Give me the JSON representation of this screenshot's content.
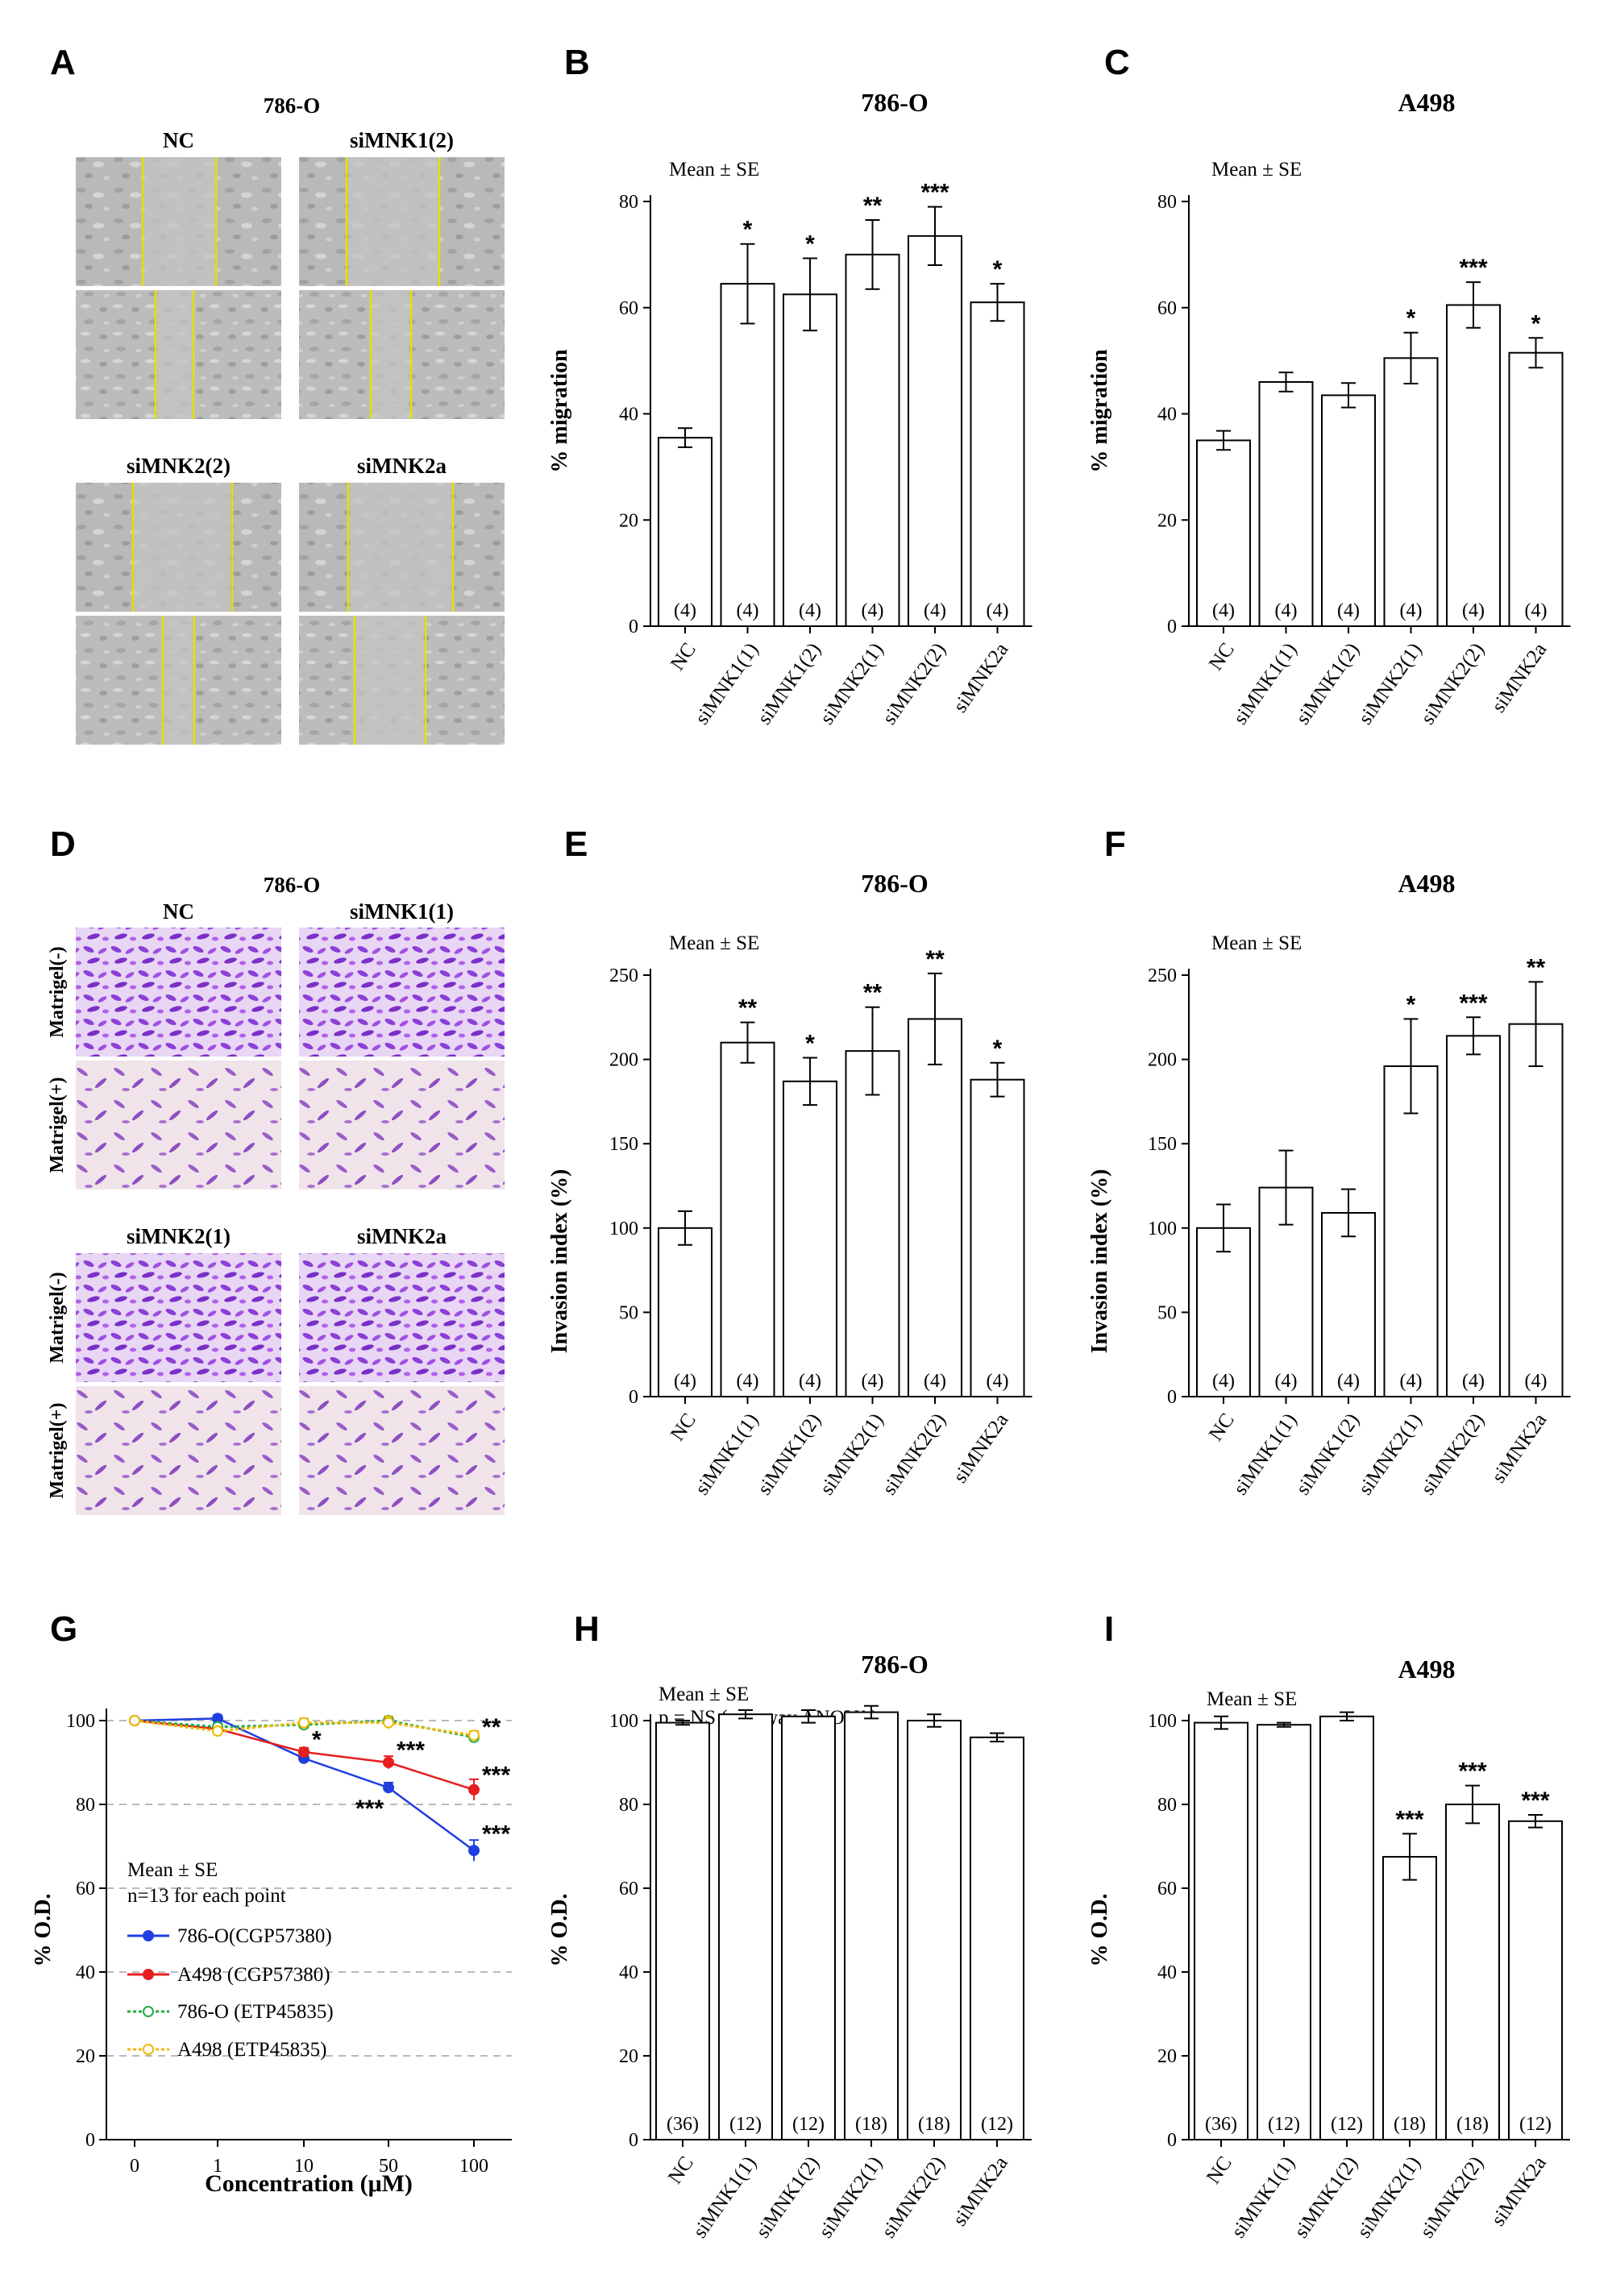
{
  "colors": {
    "blue": "#1f3fe0",
    "red": "#e61e1e",
    "green": "#22aa44",
    "orange": "#f0b800",
    "scratch_bg": "#b8b8b8",
    "scratch_line": "#e8e000",
    "stain_light": "#efe1ea",
    "stain_dark": "#8a3fd0"
  },
  "panel_A": {
    "letter": "A",
    "title": "786-O",
    "images": [
      {
        "label": "NC"
      },
      {
        "label": "siMNK1(2)"
      },
      {
        "label": "siMNK2(2)"
      },
      {
        "label": "siMNK2a"
      }
    ]
  },
  "panel_D": {
    "letter": "D",
    "title": "786-O",
    "row_labels": [
      "Matrigel(-)",
      "Matrigel(+)"
    ],
    "images": [
      {
        "label": "NC"
      },
      {
        "label": "siMNK1(1)"
      },
      {
        "label": "siMNK2(1)"
      },
      {
        "label": "siMNK2a"
      }
    ]
  },
  "chart_data": [
    {
      "panel": "B",
      "type": "bar",
      "title": "786-O",
      "note": "Mean ± SE",
      "ylabel": "% migration",
      "ylim": [
        0,
        80
      ],
      "yticks": [
        0,
        20,
        40,
        60,
        80
      ],
      "categories": [
        "NC",
        "siMNK1(1)",
        "siMNK1(2)",
        "siMNK2(1)",
        "siMNK2(2)",
        "siMNK2a"
      ],
      "values": [
        35.5,
        64.5,
        62.5,
        70,
        73.5,
        61
      ],
      "errors": [
        1.8,
        7.5,
        6.8,
        6.5,
        5.5,
        3.5
      ],
      "n": [
        "(4)",
        "(4)",
        "(4)",
        "(4)",
        "(4)",
        "(4)"
      ],
      "stars": [
        "",
        "*",
        "*",
        "**",
        "***",
        "*"
      ]
    },
    {
      "panel": "C",
      "type": "bar",
      "title": "A498",
      "note": "Mean ± SE",
      "ylabel": "% migration",
      "ylim": [
        0,
        80
      ],
      "yticks": [
        0,
        20,
        40,
        60,
        80
      ],
      "categories": [
        "NC",
        "siMNK1(1)",
        "siMNK1(2)",
        "siMNK2(1)",
        "siMNK2(2)",
        "siMNK2a"
      ],
      "values": [
        35,
        46,
        43.5,
        50.5,
        60.5,
        51.5
      ],
      "errors": [
        1.8,
        1.8,
        2.3,
        4.8,
        4.3,
        2.8
      ],
      "n": [
        "(4)",
        "(4)",
        "(4)",
        "(4)",
        "(4)",
        "(4)"
      ],
      "stars": [
        "",
        "",
        "",
        "*",
        "***",
        "*"
      ]
    },
    {
      "panel": "E",
      "type": "bar",
      "title": "786-O",
      "note": "Mean ± SE",
      "ylabel": "Invasion  index (%)",
      "ylim": [
        0,
        250
      ],
      "yticks": [
        0,
        50,
        100,
        150,
        200,
        250
      ],
      "categories": [
        "NC",
        "siMNK1(1)",
        "siMNK1(2)",
        "siMNK2(1)",
        "siMNK2(2)",
        "siMNK2a"
      ],
      "values": [
        100,
        210,
        187,
        205,
        224,
        188
      ],
      "errors": [
        10,
        12,
        14,
        26,
        27,
        10
      ],
      "n": [
        "(4)",
        "(4)",
        "(4)",
        "(4)",
        "(4)",
        "(4)"
      ],
      "stars": [
        "",
        "**",
        "*",
        "**",
        "**",
        "*"
      ]
    },
    {
      "panel": "F",
      "type": "bar",
      "title": "A498",
      "note": "Mean ± SE",
      "ylabel": "Invasion  index (%)",
      "ylim": [
        0,
        250
      ],
      "yticks": [
        0,
        50,
        100,
        150,
        200,
        250
      ],
      "categories": [
        "NC",
        "siMNK1(1)",
        "siMNK1(2)",
        "siMNK2(1)",
        "siMNK2(2)",
        "siMNK2a"
      ],
      "values": [
        100,
        124,
        109,
        196,
        214,
        221
      ],
      "errors": [
        14,
        22,
        14,
        28,
        11,
        25
      ],
      "n": [
        "(4)",
        "(4)",
        "(4)",
        "(4)",
        "(4)",
        "(4)"
      ],
      "stars": [
        "",
        "",
        "",
        "*",
        "***",
        "**"
      ]
    },
    {
      "panel": "G",
      "type": "line",
      "xlabel": "Concentration  (μM)",
      "ylabel": "% O.D.",
      "ylim": [
        0,
        100
      ],
      "yticks": [
        0,
        20,
        40,
        60,
        80,
        100
      ],
      "x": [
        "0",
        "1",
        "10",
        "50",
        "100"
      ],
      "notes": [
        "Mean ± SE",
        "n=13 for each point"
      ],
      "series": [
        {
          "name": "786-O(CGP57380)",
          "color": "#1f3fe0",
          "values": [
            100,
            100.5,
            91,
            84,
            69
          ],
          "errors": [
            0.6,
            0.8,
            1.2,
            1.2,
            2.5
          ],
          "marker": "filled"
        },
        {
          "name": "A498 (CGP57380)",
          "color": "#e61e1e",
          "values": [
            100,
            98,
            92.5,
            90,
            83.5
          ],
          "errors": [
            0.6,
            0.8,
            1,
            1.5,
            2.5
          ],
          "marker": "filled"
        },
        {
          "name": "786-O (ETP45835)",
          "color": "#22aa44",
          "values": [
            100,
            98.5,
            99,
            100,
            96
          ],
          "errors": [
            0.6,
            0.8,
            1,
            1,
            1
          ],
          "marker": "open",
          "dashed": true
        },
        {
          "name": "A498 (ETP45835)",
          "color": "#f0b800",
          "values": [
            100,
            97.5,
            99.5,
            99.5,
            96.5
          ],
          "errors": [
            0.6,
            1,
            1,
            1.5,
            1
          ],
          "marker": "open",
          "dashed": true
        }
      ],
      "annotations": [
        {
          "text": "*",
          "x": "10",
          "y": 95.5
        },
        {
          "text": "***",
          "x": "50",
          "y": 93
        },
        {
          "text": "***",
          "x": "50",
          "y": 79
        },
        {
          "text": "**",
          "x": "100",
          "y": 98.5
        },
        {
          "text": "***",
          "x": "100",
          "y": 87
        },
        {
          "text": "***",
          "x": "100",
          "y": 73
        }
      ]
    },
    {
      "panel": "H",
      "type": "bar",
      "title": "786-O",
      "note": "Mean ± SE",
      "note2": "p = NS (one-way ANOVA)",
      "ylabel": "% O.D.",
      "ylim": [
        0,
        100
      ],
      "yticks": [
        0,
        20,
        40,
        60,
        80,
        100
      ],
      "categories": [
        "NC",
        "siMNK1(1)",
        "siMNK1(2)",
        "siMNK2(1)",
        "siMNK2(2)",
        "siMNK2a"
      ],
      "values": [
        99.5,
        101.5,
        101,
        102,
        100,
        96
      ],
      "errors": [
        0.5,
        1,
        1.5,
        1.5,
        1.5,
        1
      ],
      "n": [
        "(36)",
        "(12)",
        "(12)",
        "(18)",
        "(18)",
        "(12)"
      ],
      "stars": [
        "",
        "",
        "",
        "",
        "",
        ""
      ]
    },
    {
      "panel": "I",
      "type": "bar",
      "title": "A498",
      "note": "Mean ± SE",
      "ylabel": "% O.D.",
      "ylim": [
        0,
        100
      ],
      "yticks": [
        0,
        20,
        40,
        60,
        80,
        100
      ],
      "categories": [
        "NC",
        "siMNK1(1)",
        "siMNK1(2)",
        "siMNK2(1)",
        "siMNK2(2)",
        "siMNK2a"
      ],
      "values": [
        99.5,
        99,
        101,
        67.5,
        80,
        76
      ],
      "errors": [
        1.5,
        0.5,
        1,
        5.5,
        4.5,
        1.5
      ],
      "n": [
        "(36)",
        "(12)",
        "(12)",
        "(18)",
        "(18)",
        "(12)"
      ],
      "stars": [
        "",
        "",
        "",
        "***",
        "***",
        "***"
      ]
    }
  ]
}
